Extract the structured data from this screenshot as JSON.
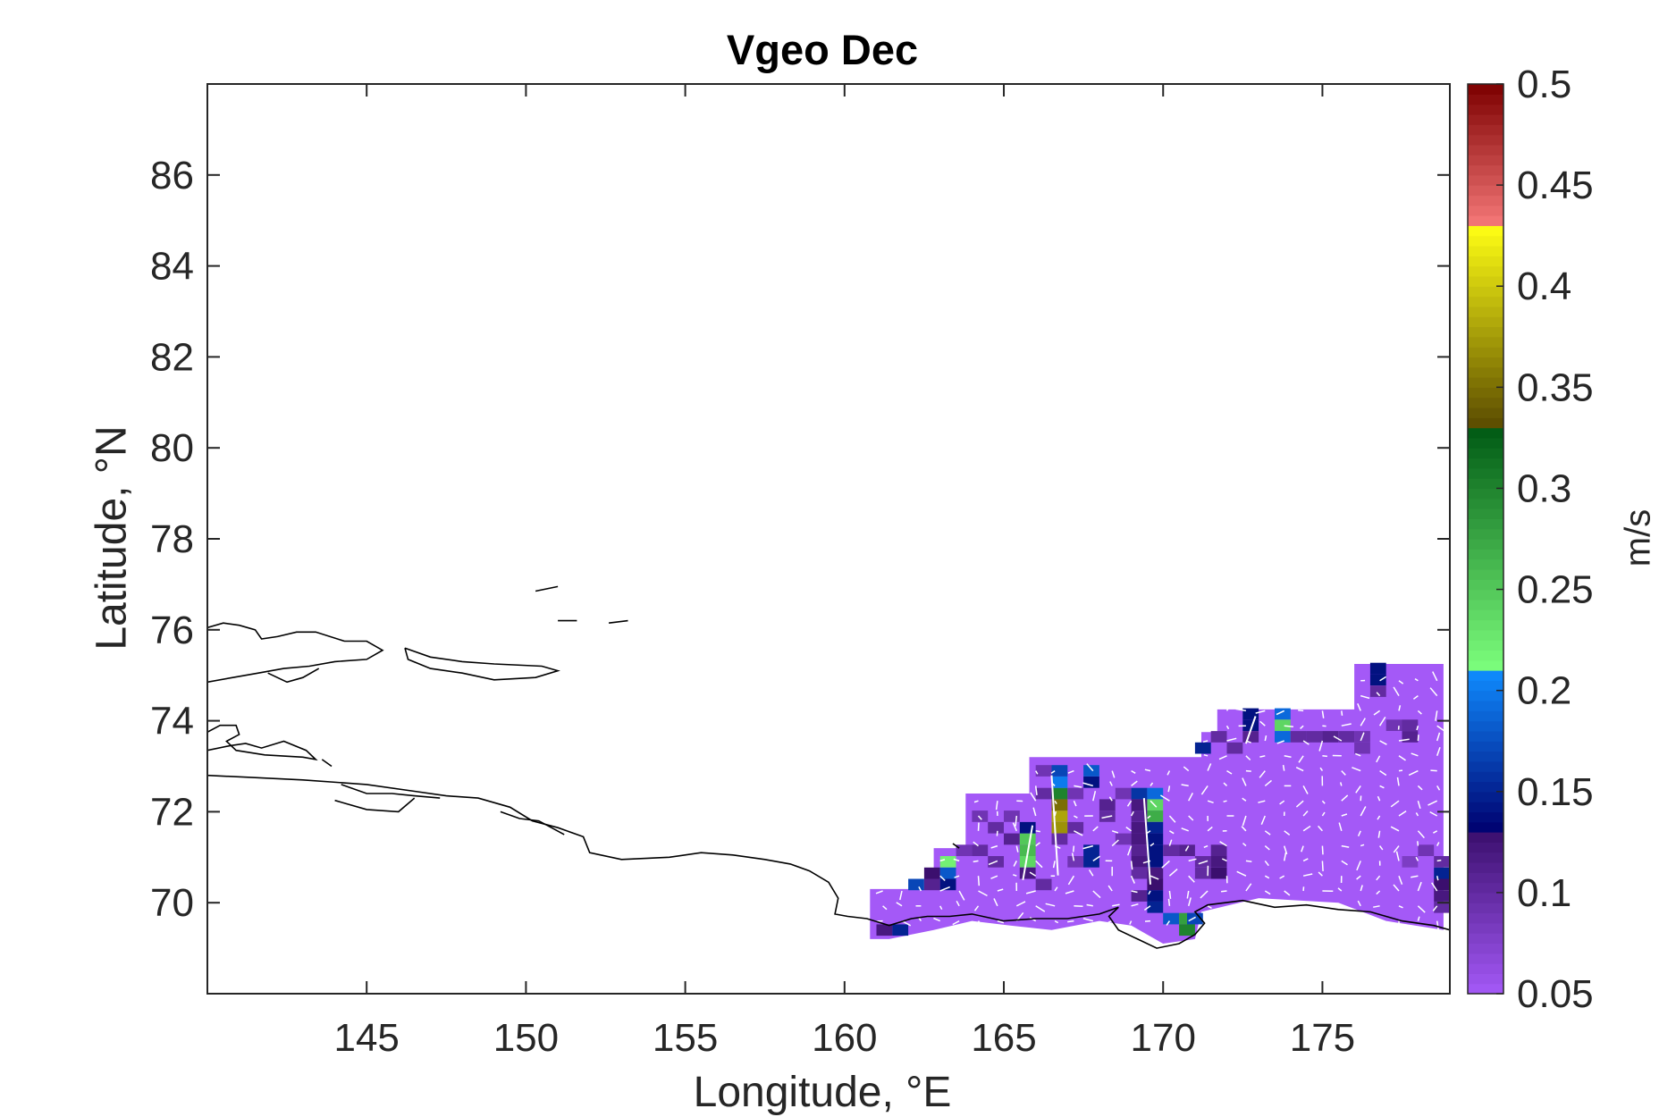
{
  "chart_data": {
    "type": "heatmap",
    "title": "Vgeo Dec",
    "xlabel": "Longitude, °E",
    "ylabel": "Latitude, °N",
    "colorbar_label": "m/s",
    "xlim": [
      140,
      179
    ],
    "ylim": [
      68,
      88
    ],
    "xticks": [
      145,
      150,
      155,
      160,
      165,
      170,
      175
    ],
    "yticks": [
      70,
      72,
      74,
      76,
      78,
      80,
      82,
      84,
      86
    ],
    "colorbar": {
      "range": [
        0.05,
        0.5
      ],
      "ticks": [
        "0.05",
        "0.1",
        "0.15",
        "0.2",
        "0.25",
        "0.3",
        "0.35",
        "0.4",
        "0.45",
        "0.5"
      ],
      "segments": [
        {
          "from": 0.05,
          "to": 0.13,
          "color_low": "#a459f7",
          "color_high": "#3b0f6e"
        },
        {
          "from": 0.13,
          "to": 0.21,
          "color_low": "#00006e",
          "color_high": "#0f8cff"
        },
        {
          "from": 0.21,
          "to": 0.33,
          "color_low": "#7dff7d",
          "color_high": "#005a14"
        },
        {
          "from": 0.33,
          "to": 0.43,
          "color_low": "#5a4a00",
          "color_high": "#ffff14"
        },
        {
          "from": 0.43,
          "to": 0.5,
          "color_low": "#f57878",
          "color_high": "#7d0000"
        }
      ]
    },
    "base_value": 0.05,
    "base_color": "#a459f7",
    "grid": false,
    "vectors": "white",
    "cell_size_deg": [
      0.5,
      0.25
    ],
    "field_outline": [
      [
        160.8,
        69.2
      ],
      [
        161.4,
        69.2
      ],
      [
        162.8,
        69.4
      ],
      [
        164,
        69.6
      ],
      [
        165.2,
        69.5
      ],
      [
        166.5,
        69.4
      ],
      [
        168,
        69.6
      ],
      [
        169,
        69.5
      ],
      [
        170,
        69.1
      ],
      [
        171,
        69.2
      ],
      [
        171.2,
        69.8
      ],
      [
        173,
        70.1
      ],
      [
        175.5,
        70.0
      ],
      [
        177,
        69.6
      ],
      [
        178.8,
        69.4
      ],
      [
        178.8,
        75.25
      ],
      [
        176,
        75.25
      ],
      [
        176,
        74.25
      ],
      [
        171.7,
        74.25
      ],
      [
        171.7,
        73.75
      ],
      [
        171.2,
        73.75
      ],
      [
        171.2,
        73.2
      ],
      [
        165.8,
        73.2
      ],
      [
        165.8,
        72.4
      ],
      [
        163.8,
        72.4
      ],
      [
        163.8,
        71.2
      ],
      [
        162.8,
        71.2
      ],
      [
        162.8,
        70.3
      ],
      [
        160.8,
        70.3
      ]
    ],
    "cells": [
      {
        "x": 161.25,
        "y": 69.4,
        "v": 0.12
      },
      {
        "x": 161.75,
        "y": 69.4,
        "v": 0.15
      },
      {
        "x": 162.25,
        "y": 70.4,
        "v": 0.17
      },
      {
        "x": 162.75,
        "y": 70.4,
        "v": 0.11
      },
      {
        "x": 162.75,
        "y": 70.65,
        "v": 0.13
      },
      {
        "x": 163.25,
        "y": 70.65,
        "v": 0.18
      },
      {
        "x": 163.25,
        "y": 70.4,
        "v": 0.14
      },
      {
        "x": 163.25,
        "y": 70.9,
        "v": 0.22
      },
      {
        "x": 163.75,
        "y": 71.15,
        "v": 0.09
      },
      {
        "x": 164.25,
        "y": 71.15,
        "v": 0.1
      },
      {
        "x": 164.75,
        "y": 70.9,
        "v": 0.1
      },
      {
        "x": 164.25,
        "y": 71.9,
        "v": 0.09
      },
      {
        "x": 164.75,
        "y": 71.65,
        "v": 0.1
      },
      {
        "x": 165.25,
        "y": 71.4,
        "v": 0.11
      },
      {
        "x": 165.25,
        "y": 71.9,
        "v": 0.09
      },
      {
        "x": 165.75,
        "y": 70.9,
        "v": 0.24
      },
      {
        "x": 165.75,
        "y": 71.15,
        "v": 0.26
      },
      {
        "x": 165.75,
        "y": 71.4,
        "v": 0.25
      },
      {
        "x": 165.75,
        "y": 71.65,
        "v": 0.14
      },
      {
        "x": 165.75,
        "y": 70.65,
        "v": 0.12
      },
      {
        "x": 166.25,
        "y": 72.4,
        "v": 0.1
      },
      {
        "x": 166.25,
        "y": 72.9,
        "v": 0.09
      },
      {
        "x": 166.25,
        "y": 70.4,
        "v": 0.1
      },
      {
        "x": 166.75,
        "y": 71.65,
        "v": 0.37
      },
      {
        "x": 166.75,
        "y": 71.9,
        "v": 0.38
      },
      {
        "x": 166.75,
        "y": 72.15,
        "v": 0.35
      },
      {
        "x": 166.75,
        "y": 72.4,
        "v": 0.3
      },
      {
        "x": 166.75,
        "y": 72.65,
        "v": 0.2
      },
      {
        "x": 166.75,
        "y": 72.9,
        "v": 0.17
      },
      {
        "x": 166.75,
        "y": 71.4,
        "v": 0.1
      },
      {
        "x": 167.25,
        "y": 72.4,
        "v": 0.09
      },
      {
        "x": 167.25,
        "y": 71.65,
        "v": 0.1
      },
      {
        "x": 167.25,
        "y": 70.9,
        "v": 0.09
      },
      {
        "x": 167.75,
        "y": 72.9,
        "v": 0.18
      },
      {
        "x": 167.75,
        "y": 72.65,
        "v": 0.14
      },
      {
        "x": 167.75,
        "y": 70.9,
        "v": 0.15
      },
      {
        "x": 167.75,
        "y": 71.15,
        "v": 0.15
      },
      {
        "x": 168.25,
        "y": 72.15,
        "v": 0.11
      },
      {
        "x": 168.25,
        "y": 71.9,
        "v": 0.1
      },
      {
        "x": 168.75,
        "y": 71.4,
        "v": 0.09
      },
      {
        "x": 168.75,
        "y": 72.4,
        "v": 0.09
      },
      {
        "x": 169.25,
        "y": 72.4,
        "v": 0.16
      },
      {
        "x": 169.25,
        "y": 72.15,
        "v": 0.12
      },
      {
        "x": 169.25,
        "y": 71.9,
        "v": 0.11
      },
      {
        "x": 169.25,
        "y": 71.65,
        "v": 0.12
      },
      {
        "x": 169.25,
        "y": 71.4,
        "v": 0.12
      },
      {
        "x": 169.25,
        "y": 71.15,
        "v": 0.11
      },
      {
        "x": 169.25,
        "y": 70.9,
        "v": 0.12
      },
      {
        "x": 169.25,
        "y": 70.65,
        "v": 0.1
      },
      {
        "x": 169.25,
        "y": 70.15,
        "v": 0.11
      },
      {
        "x": 169.75,
        "y": 72.4,
        "v": 0.19
      },
      {
        "x": 169.75,
        "y": 72.15,
        "v": 0.24
      },
      {
        "x": 169.75,
        "y": 71.9,
        "v": 0.27
      },
      {
        "x": 169.75,
        "y": 71.65,
        "v": 0.15
      },
      {
        "x": 169.75,
        "y": 71.4,
        "v": 0.14
      },
      {
        "x": 169.75,
        "y": 71.15,
        "v": 0.14
      },
      {
        "x": 169.75,
        "y": 70.9,
        "v": 0.14
      },
      {
        "x": 169.75,
        "y": 70.65,
        "v": 0.12
      },
      {
        "x": 169.75,
        "y": 70.4,
        "v": 0.13
      },
      {
        "x": 169.75,
        "y": 70.15,
        "v": 0.14
      },
      {
        "x": 169.75,
        "y": 69.9,
        "v": 0.15
      },
      {
        "x": 170.25,
        "y": 69.65,
        "v": 0.18
      },
      {
        "x": 170.75,
        "y": 69.65,
        "v": 0.28
      },
      {
        "x": 170.75,
        "y": 69.4,
        "v": 0.3
      },
      {
        "x": 171.0,
        "y": 69.65,
        "v": 0.17
      },
      {
        "x": 170.25,
        "y": 71.15,
        "v": 0.1
      },
      {
        "x": 170.75,
        "y": 71.15,
        "v": 0.11
      },
      {
        "x": 171.25,
        "y": 70.9,
        "v": 0.1
      },
      {
        "x": 171.25,
        "y": 70.65,
        "v": 0.1
      },
      {
        "x": 171.75,
        "y": 70.9,
        "v": 0.12
      },
      {
        "x": 171.75,
        "y": 70.65,
        "v": 0.13
      },
      {
        "x": 171.75,
        "y": 71.15,
        "v": 0.11
      },
      {
        "x": 171.25,
        "y": 73.4,
        "v": 0.15
      },
      {
        "x": 171.75,
        "y": 73.65,
        "v": 0.1
      },
      {
        "x": 172.25,
        "y": 73.4,
        "v": 0.1
      },
      {
        "x": 172.75,
        "y": 74.15,
        "v": 0.14
      },
      {
        "x": 172.75,
        "y": 73.9,
        "v": 0.14
      },
      {
        "x": 172.75,
        "y": 73.65,
        "v": 0.11
      },
      {
        "x": 173.75,
        "y": 74.15,
        "v": 0.19
      },
      {
        "x": 173.75,
        "y": 73.9,
        "v": 0.24
      },
      {
        "x": 173.75,
        "y": 73.65,
        "v": 0.19
      },
      {
        "x": 174.25,
        "y": 73.65,
        "v": 0.1
      },
      {
        "x": 174.75,
        "y": 73.65,
        "v": 0.1
      },
      {
        "x": 175.25,
        "y": 73.65,
        "v": 0.11
      },
      {
        "x": 175.75,
        "y": 73.65,
        "v": 0.1
      },
      {
        "x": 176.25,
        "y": 73.4,
        "v": 0.09
      },
      {
        "x": 176.25,
        "y": 73.65,
        "v": 0.09
      },
      {
        "x": 176.75,
        "y": 74.9,
        "v": 0.14
      },
      {
        "x": 176.75,
        "y": 75.15,
        "v": 0.14
      },
      {
        "x": 176.75,
        "y": 74.65,
        "v": 0.1
      },
      {
        "x": 177.75,
        "y": 73.9,
        "v": 0.1
      },
      {
        "x": 177.75,
        "y": 73.65,
        "v": 0.11
      },
      {
        "x": 177.25,
        "y": 73.9,
        "v": 0.09
      },
      {
        "x": 178.25,
        "y": 71.15,
        "v": 0.09
      },
      {
        "x": 178.75,
        "y": 70.65,
        "v": 0.15
      },
      {
        "x": 178.75,
        "y": 70.4,
        "v": 0.13
      },
      {
        "x": 178.75,
        "y": 70.15,
        "v": 0.12
      },
      {
        "x": 178.75,
        "y": 69.9,
        "v": 0.1
      },
      {
        "x": 178.75,
        "y": 70.9,
        "v": 0.1
      },
      {
        "x": 177.75,
        "y": 70.9,
        "v": 0.08
      }
    ],
    "coastlines": [
      [
        [
          140,
          74.85
        ],
        [
          140.8,
          74.95
        ],
        [
          141.6,
          75.05
        ],
        [
          142.4,
          75.15
        ],
        [
          143.2,
          75.2
        ],
        [
          144.0,
          75.3
        ],
        [
          145.0,
          75.35
        ],
        [
          145.5,
          75.55
        ],
        [
          145.0,
          75.75
        ],
        [
          144.3,
          75.75
        ],
        [
          143.4,
          75.95
        ],
        [
          142.8,
          75.95
        ],
        [
          142.2,
          75.85
        ],
        [
          141.7,
          75.8
        ],
        [
          141.5,
          76.0
        ],
        [
          141.0,
          76.1
        ],
        [
          140.5,
          76.15
        ],
        [
          140,
          76.05
        ]
      ],
      [
        [
          140,
          73.75
        ],
        [
          140.4,
          73.9
        ],
        [
          140.9,
          73.9
        ],
        [
          141.0,
          73.7
        ],
        [
          140.6,
          73.55
        ],
        [
          140.9,
          73.35
        ],
        [
          141.8,
          73.25
        ],
        [
          143.0,
          73.2
        ],
        [
          143.4,
          73.15
        ],
        [
          143.1,
          73.35
        ],
        [
          142.4,
          73.55
        ],
        [
          141.7,
          73.4
        ],
        [
          141.2,
          73.5
        ],
        [
          140.7,
          73.45
        ],
        [
          140,
          73.35
        ]
      ],
      [
        [
          146.2,
          75.6
        ],
        [
          147.0,
          75.4
        ],
        [
          148.0,
          75.3
        ],
        [
          149.0,
          75.25
        ],
        [
          150.5,
          75.2
        ],
        [
          151.0,
          75.1
        ],
        [
          150.3,
          74.95
        ],
        [
          149.0,
          74.9
        ],
        [
          148.0,
          75.05
        ],
        [
          147.0,
          75.15
        ],
        [
          146.3,
          75.35
        ],
        [
          146.2,
          75.6
        ]
      ],
      [
        [
          141.9,
          75.05
        ],
        [
          142.5,
          74.85
        ],
        [
          143.0,
          74.95
        ],
        [
          143.5,
          75.15
        ]
      ],
      [
        [
          140,
          72.8
        ],
        [
          141.5,
          72.75
        ],
        [
          143.0,
          72.7
        ],
        [
          145.0,
          72.6
        ],
        [
          146.5,
          72.45
        ],
        [
          147.5,
          72.35
        ],
        [
          148.5,
          72.3
        ],
        [
          149.5,
          72.1
        ],
        [
          150.2,
          71.8
        ],
        [
          151.0,
          71.65
        ],
        [
          151.8,
          71.45
        ],
        [
          152.0,
          71.1
        ],
        [
          153.0,
          70.95
        ],
        [
          154.5,
          71.0
        ],
        [
          155.5,
          71.1
        ],
        [
          156.5,
          71.05
        ],
        [
          157.5,
          70.95
        ],
        [
          158.3,
          70.85
        ],
        [
          158.9,
          70.7
        ],
        [
          159.5,
          70.45
        ],
        [
          159.8,
          70.1
        ],
        [
          159.7,
          69.75
        ],
        [
          160.1,
          69.7
        ],
        [
          160.7,
          69.65
        ],
        [
          161.4,
          69.5
        ],
        [
          162.1,
          69.65
        ],
        [
          162.6,
          69.7
        ],
        [
          163.3,
          69.7
        ],
        [
          164.0,
          69.75
        ],
        [
          165.0,
          69.6
        ],
        [
          166.0,
          69.65
        ],
        [
          167.0,
          69.65
        ],
        [
          168.0,
          69.75
        ],
        [
          168.6,
          69.9
        ],
        [
          168.3,
          69.7
        ],
        [
          168.6,
          69.4
        ],
        [
          169.2,
          69.2
        ],
        [
          169.8,
          69.0
        ],
        [
          170.5,
          69.1
        ],
        [
          171.0,
          69.3
        ],
        [
          171.3,
          69.55
        ],
        [
          171.0,
          69.8
        ],
        [
          171.4,
          69.95
        ],
        [
          172.5,
          70.05
        ],
        [
          173.5,
          69.9
        ],
        [
          174.5,
          69.95
        ],
        [
          175.5,
          69.85
        ],
        [
          176.5,
          69.8
        ],
        [
          177.5,
          69.6
        ],
        [
          178.5,
          69.5
        ],
        [
          179,
          69.4
        ]
      ],
      [
        [
          144.2,
          72.6
        ],
        [
          145.0,
          72.4
        ],
        [
          145.8,
          72.4
        ],
        [
          146.5,
          72.35
        ],
        [
          147.3,
          72.3
        ]
      ],
      [
        [
          144.0,
          72.25
        ],
        [
          145.0,
          72.05
        ],
        [
          146.0,
          72.0
        ],
        [
          146.5,
          72.3
        ]
      ],
      [
        [
          149.2,
          72.0
        ],
        [
          149.8,
          71.85
        ],
        [
          150.4,
          71.8
        ],
        [
          150.8,
          71.65
        ],
        [
          151.2,
          71.5
        ]
      ],
      [
        [
          143.6,
          73.15
        ],
        [
          143.9,
          73.0
        ]
      ],
      [
        [
          150.3,
          76.85
        ],
        [
          151.0,
          76.95
        ]
      ],
      [
        [
          152.6,
          76.15
        ],
        [
          153.2,
          76.2
        ]
      ],
      [
        [
          151.0,
          76.2
        ],
        [
          151.6,
          76.2
        ]
      ],
      [
        [
          163.6,
          71.2
        ],
        [
          163.4,
          71.3
        ]
      ]
    ]
  }
}
